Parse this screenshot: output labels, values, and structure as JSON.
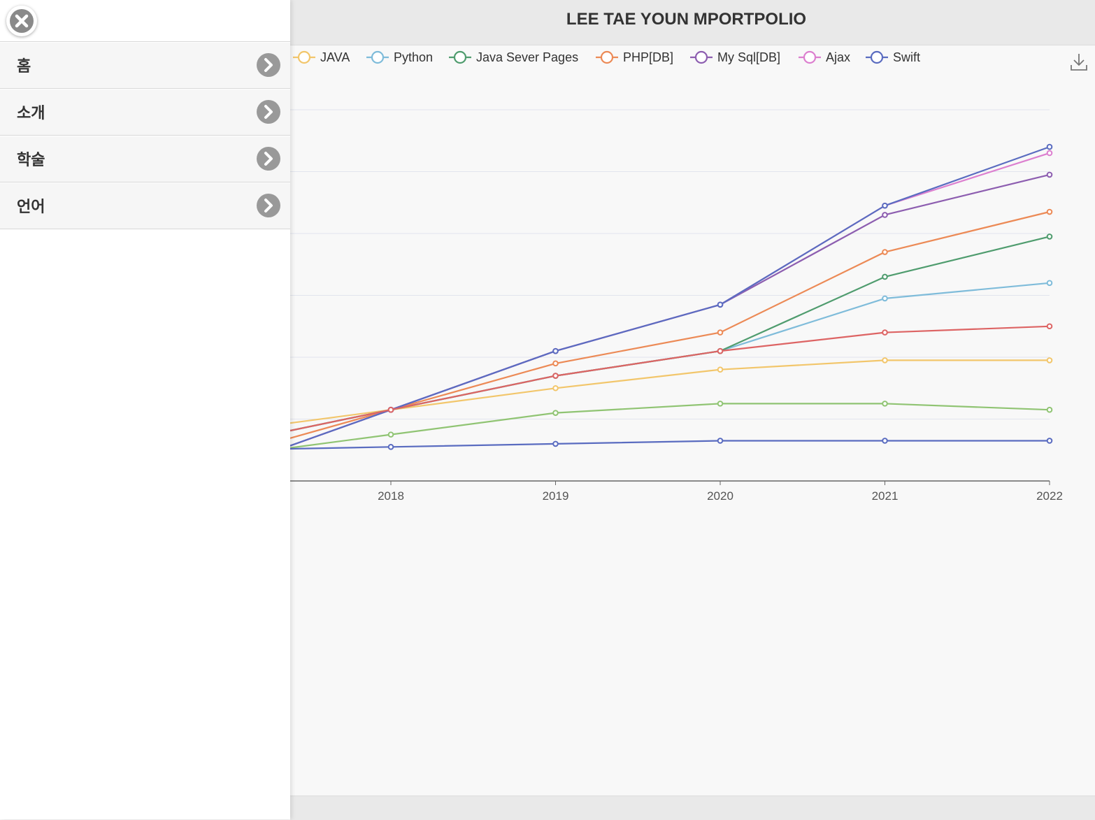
{
  "header": {
    "title": "LEE TAE YOUN MPORTPOLIO"
  },
  "menu": {
    "items": [
      {
        "label": "홈"
      },
      {
        "label": "소개"
      },
      {
        "label": "학술"
      },
      {
        "label": "언어"
      }
    ]
  },
  "colors": {
    "java": "#f2c66b",
    "python": "#7fbcda",
    "jsp": "#4f9c6e",
    "php": "#ec8a56",
    "mysql": "#8d5eb0",
    "ajax": "#dc7fcf",
    "swift": "#5a6cc0",
    "red": "#dd6464",
    "green_light": "#90c473",
    "blue_low": "#5a6cc0"
  },
  "icons": {
    "close": "close-icon",
    "chevron": "chevron-right-icon",
    "download": "download-icon"
  },
  "chart_data": {
    "type": "line",
    "title": "",
    "xlabel": "",
    "ylabel": "",
    "x": [
      "2018",
      "2019",
      "2020",
      "2021",
      "2022"
    ],
    "legend_position": "top",
    "grid": true,
    "series": [
      {
        "name": "JAVA",
        "color": "#f2c66b",
        "values": [
          2.3,
          3.0,
          3.6,
          3.9,
          3.9
        ]
      },
      {
        "name": "Python",
        "color": "#7fbcda",
        "values": [
          2.3,
          3.4,
          4.2,
          5.9,
          6.4
        ]
      },
      {
        "name": "Java Sever Pages",
        "color": "#4f9c6e",
        "values": [
          2.3,
          3.4,
          4.2,
          6.6,
          7.9
        ]
      },
      {
        "name": "PHP[DB]",
        "color": "#ec8a56",
        "values": [
          2.3,
          3.8,
          4.8,
          7.4,
          8.7
        ]
      },
      {
        "name": "My Sql[DB]",
        "color": "#8d5eb0",
        "values": [
          2.3,
          4.2,
          5.7,
          8.6,
          9.9
        ]
      },
      {
        "name": "Ajax",
        "color": "#dc7fcf",
        "values": [
          2.3,
          4.2,
          5.7,
          8.9,
          10.6
        ]
      },
      {
        "name": "Swift",
        "color": "#5a6cc0",
        "values": [
          2.3,
          4.2,
          5.7,
          8.9,
          10.8
        ]
      },
      {
        "name": "",
        "color": "#dd6464",
        "values": [
          2.3,
          3.4,
          4.2,
          4.8,
          5.0
        ]
      },
      {
        "name": "",
        "color": "#90c473",
        "values": [
          1.5,
          2.2,
          2.5,
          2.5,
          2.3
        ]
      },
      {
        "name": "",
        "color": "#5a6cc0",
        "values": [
          1.1,
          1.2,
          1.3,
          1.3,
          1.3
        ]
      }
    ]
  }
}
